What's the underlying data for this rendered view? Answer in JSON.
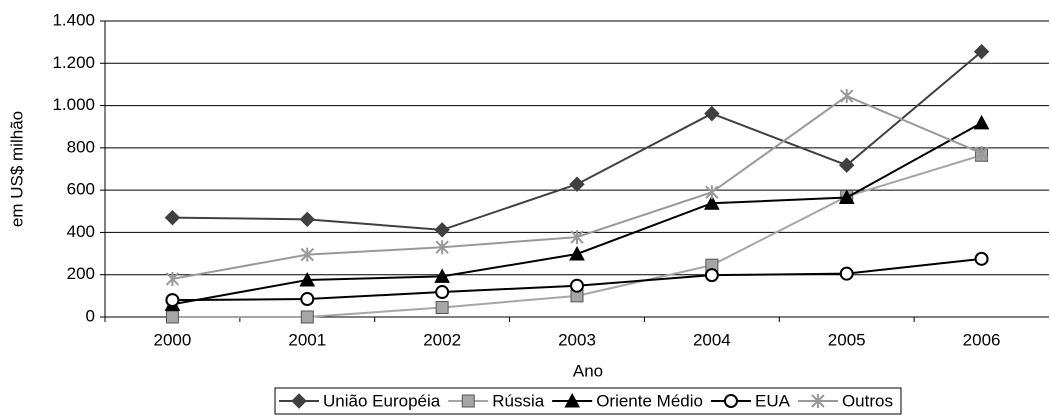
{
  "chart_data": {
    "type": "line",
    "x_label": "Ano",
    "y_label": "em US$ milhão",
    "categories": [
      "2000",
      "2001",
      "2002",
      "2003",
      "2004",
      "2005",
      "2006"
    ],
    "series": [
      {
        "name": "União Européia",
        "color": "#404040",
        "marker": "diamond",
        "values": [
          470,
          462,
          412,
          628,
          962,
          718,
          1255
        ]
      },
      {
        "name": "Rússia",
        "color": "#a6a6a6",
        "marker": "square",
        "values": [
          0,
          0,
          45,
          100,
          245,
          570,
          765
        ]
      },
      {
        "name": "Oriente Médio",
        "color": "#000000",
        "marker": "triangle",
        "values": [
          60,
          175,
          192,
          298,
          538,
          565,
          918
        ]
      },
      {
        "name": "EUA",
        "color": "#000000",
        "marker": "circle",
        "values": [
          80,
          85,
          118,
          148,
          198,
          205,
          275
        ]
      },
      {
        "name": "Outros",
        "color": "#999999",
        "marker": "star",
        "values": [
          180,
          295,
          330,
          378,
          590,
          1045,
          775
        ]
      }
    ],
    "ylim": [
      0,
      1400
    ],
    "yticks": [
      0,
      200,
      400,
      600,
      800,
      {
        "value": 1000,
        "label": "1.000"
      },
      {
        "value": 1200,
        "label": "1.200"
      },
      {
        "value": 1400,
        "label": "1.400"
      }
    ],
    "grid": true
  }
}
